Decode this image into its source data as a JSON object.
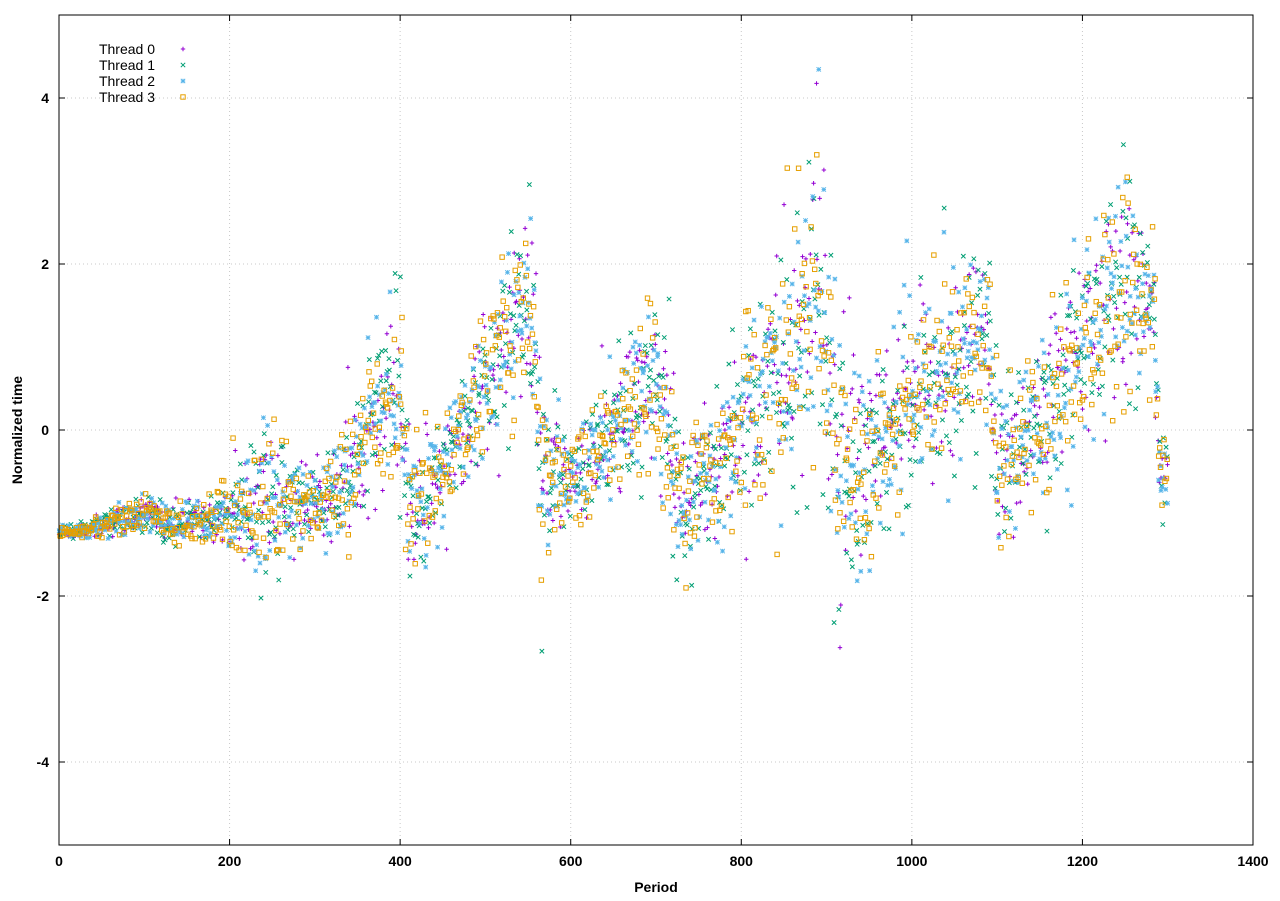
{
  "chart_data": {
    "type": "scatter",
    "title": "",
    "xlabel": "Period",
    "ylabel": "Normalized time",
    "xlim": [
      0,
      1400
    ],
    "ylim": [
      -5,
      5
    ],
    "x_ticks": [
      0,
      200,
      400,
      600,
      800,
      1000,
      1200,
      1400
    ],
    "y_ticks": [
      -4,
      -2,
      0,
      2,
      4
    ],
    "x_tick_labels": [
      "0",
      "200",
      "400",
      "600",
      "800",
      "1000",
      "1200",
      "1400"
    ],
    "y_tick_labels": [
      "-4",
      "-2",
      "0",
      "2",
      "4"
    ],
    "grid": true,
    "legend_position": "top-left",
    "series": [
      {
        "name": "Thread 0",
        "color": "#9400d3",
        "marker": "plus"
      },
      {
        "name": "Thread 1",
        "color": "#009e73",
        "marker": "cross"
      },
      {
        "name": "Thread 2",
        "color": "#56b4e9",
        "marker": "star"
      },
      {
        "name": "Thread 3",
        "color": "#e69f00",
        "marker": "square"
      }
    ],
    "trend": [
      [
        0,
        -1.25
      ],
      [
        30,
        -1.2
      ],
      [
        60,
        -1.12
      ],
      [
        100,
        -1.0
      ],
      [
        140,
        -1.15
      ],
      [
        180,
        -1.05
      ],
      [
        220,
        -0.95
      ],
      [
        260,
        -0.8
      ],
      [
        300,
        -0.95
      ],
      [
        330,
        -0.7
      ],
      [
        360,
        -0.1
      ],
      [
        400,
        0.6
      ],
      [
        410,
        -0.95
      ],
      [
        450,
        -0.5
      ],
      [
        480,
        0.2
      ],
      [
        520,
        1.0
      ],
      [
        555,
        1.6
      ],
      [
        565,
        -0.6
      ],
      [
        600,
        -0.6
      ],
      [
        650,
        -0.1
      ],
      [
        700,
        0.6
      ],
      [
        730,
        -0.9
      ],
      [
        770,
        -0.4
      ],
      [
        800,
        0.0
      ],
      [
        850,
        0.8
      ],
      [
        895,
        1.8
      ],
      [
        915,
        -0.6
      ],
      [
        960,
        -0.2
      ],
      [
        1000,
        0.3
      ],
      [
        1050,
        0.8
      ],
      [
        1090,
        1.2
      ],
      [
        1100,
        -0.5
      ],
      [
        1150,
        0.2
      ],
      [
        1200,
        1.0
      ],
      [
        1250,
        1.9
      ],
      [
        1285,
        1.4
      ],
      [
        1290,
        -0.6
      ],
      [
        1300,
        -0.4
      ]
    ],
    "spread": [
      [
        0,
        0.03
      ],
      [
        100,
        0.12
      ],
      [
        180,
        0.12
      ],
      [
        240,
        0.5
      ],
      [
        300,
        0.2
      ],
      [
        330,
        0.3
      ],
      [
        400,
        0.55
      ],
      [
        450,
        0.3
      ],
      [
        520,
        0.45
      ],
      [
        560,
        0.6
      ],
      [
        600,
        0.25
      ],
      [
        700,
        0.6
      ],
      [
        760,
        0.35
      ],
      [
        850,
        0.8
      ],
      [
        900,
        1.0
      ],
      [
        960,
        0.5
      ],
      [
        1050,
        0.6
      ],
      [
        1100,
        0.5
      ],
      [
        1150,
        0.5
      ],
      [
        1250,
        0.7
      ],
      [
        1300,
        0.2
      ]
    ],
    "point_range": [
      0,
      1300
    ],
    "point_step": 1.3
  }
}
